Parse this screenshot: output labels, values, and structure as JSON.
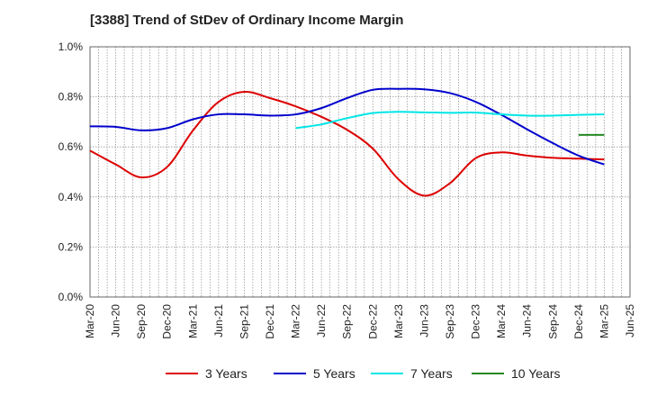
{
  "title": "[3388]  Trend of StDev of Ordinary Income Margin",
  "legend": {
    "items": [
      {
        "label": "3 Years",
        "color": "#dd0000"
      },
      {
        "label": "5 Years",
        "color": "#0000cc"
      },
      {
        "label": "7 Years",
        "color": "#00e5e5"
      },
      {
        "label": "10 Years",
        "color": "#228822"
      }
    ]
  },
  "chart_data": {
    "type": "line",
    "title": "[3388]  Trend of StDev of Ordinary Income Margin",
    "xlabel": "",
    "ylabel": "",
    "ylim": [
      0,
      1.0
    ],
    "y_ticks": [
      "0.0%",
      "0.2%",
      "0.4%",
      "0.6%",
      "0.8%",
      "1.0%"
    ],
    "x_ticks": [
      "Mar-20",
      "Jun-20",
      "Sep-20",
      "Dec-20",
      "Mar-21",
      "Jun-21",
      "Sep-21",
      "Dec-21",
      "Mar-22",
      "Jun-22",
      "Sep-22",
      "Dec-22",
      "Mar-23",
      "Jun-23",
      "Sep-23",
      "Dec-23",
      "Mar-24",
      "Jun-24",
      "Sep-24",
      "Dec-24",
      "Mar-25",
      "Jun-25"
    ],
    "grid": true,
    "legend_position": "bottom",
    "series": [
      {
        "name": "3 Years",
        "color": "#dd0000",
        "points": [
          [
            "Mar-20",
            0.585
          ],
          [
            "Jun-20",
            0.53
          ],
          [
            "Sep-20",
            0.478
          ],
          [
            "Dec-20",
            0.52
          ],
          [
            "Mar-21",
            0.665
          ],
          [
            "Jun-21",
            0.78
          ],
          [
            "Sep-21",
            0.82
          ],
          [
            "Dec-21",
            0.795
          ],
          [
            "Mar-22",
            0.762
          ],
          [
            "Jun-22",
            0.72
          ],
          [
            "Sep-22",
            0.668
          ],
          [
            "Dec-22",
            0.593
          ],
          [
            "Mar-23",
            0.47
          ],
          [
            "Jun-23",
            0.405
          ],
          [
            "Sep-23",
            0.455
          ],
          [
            "Dec-23",
            0.555
          ],
          [
            "Mar-24",
            0.578
          ],
          [
            "Jun-24",
            0.565
          ],
          [
            "Sep-24",
            0.556
          ],
          [
            "Dec-24",
            0.553
          ],
          [
            "Mar-25",
            0.55
          ]
        ]
      },
      {
        "name": "5 Years",
        "color": "#0000cc",
        "points": [
          [
            "Mar-20",
            0.682
          ],
          [
            "Jun-20",
            0.68
          ],
          [
            "Sep-20",
            0.666
          ],
          [
            "Dec-20",
            0.675
          ],
          [
            "Mar-21",
            0.71
          ],
          [
            "Jun-21",
            0.73
          ],
          [
            "Sep-21",
            0.73
          ],
          [
            "Dec-21",
            0.725
          ],
          [
            "Mar-22",
            0.73
          ],
          [
            "Jun-22",
            0.755
          ],
          [
            "Sep-22",
            0.795
          ],
          [
            "Dec-22",
            0.828
          ],
          [
            "Mar-23",
            0.832
          ],
          [
            "Jun-23",
            0.83
          ],
          [
            "Sep-23",
            0.815
          ],
          [
            "Dec-23",
            0.78
          ],
          [
            "Mar-24",
            0.728
          ],
          [
            "Jun-24",
            0.67
          ],
          [
            "Sep-24",
            0.615
          ],
          [
            "Dec-24",
            0.565
          ],
          [
            "Mar-25",
            0.53
          ]
        ]
      },
      {
        "name": "7 Years",
        "color": "#00e5e5",
        "points": [
          [
            "Mar-22",
            0.675
          ],
          [
            "Jun-22",
            0.69
          ],
          [
            "Sep-22",
            0.715
          ],
          [
            "Dec-22",
            0.735
          ],
          [
            "Mar-23",
            0.74
          ],
          [
            "Jun-23",
            0.738
          ],
          [
            "Sep-23",
            0.736
          ],
          [
            "Dec-23",
            0.737
          ],
          [
            "Mar-24",
            0.73
          ],
          [
            "Jun-24",
            0.725
          ],
          [
            "Sep-24",
            0.725
          ],
          [
            "Dec-24",
            0.728
          ],
          [
            "Mar-25",
            0.73
          ]
        ]
      },
      {
        "name": "10 Years",
        "color": "#228822",
        "points": [
          [
            "Dec-24",
            0.648
          ],
          [
            "Mar-25",
            0.648
          ]
        ]
      }
    ]
  }
}
